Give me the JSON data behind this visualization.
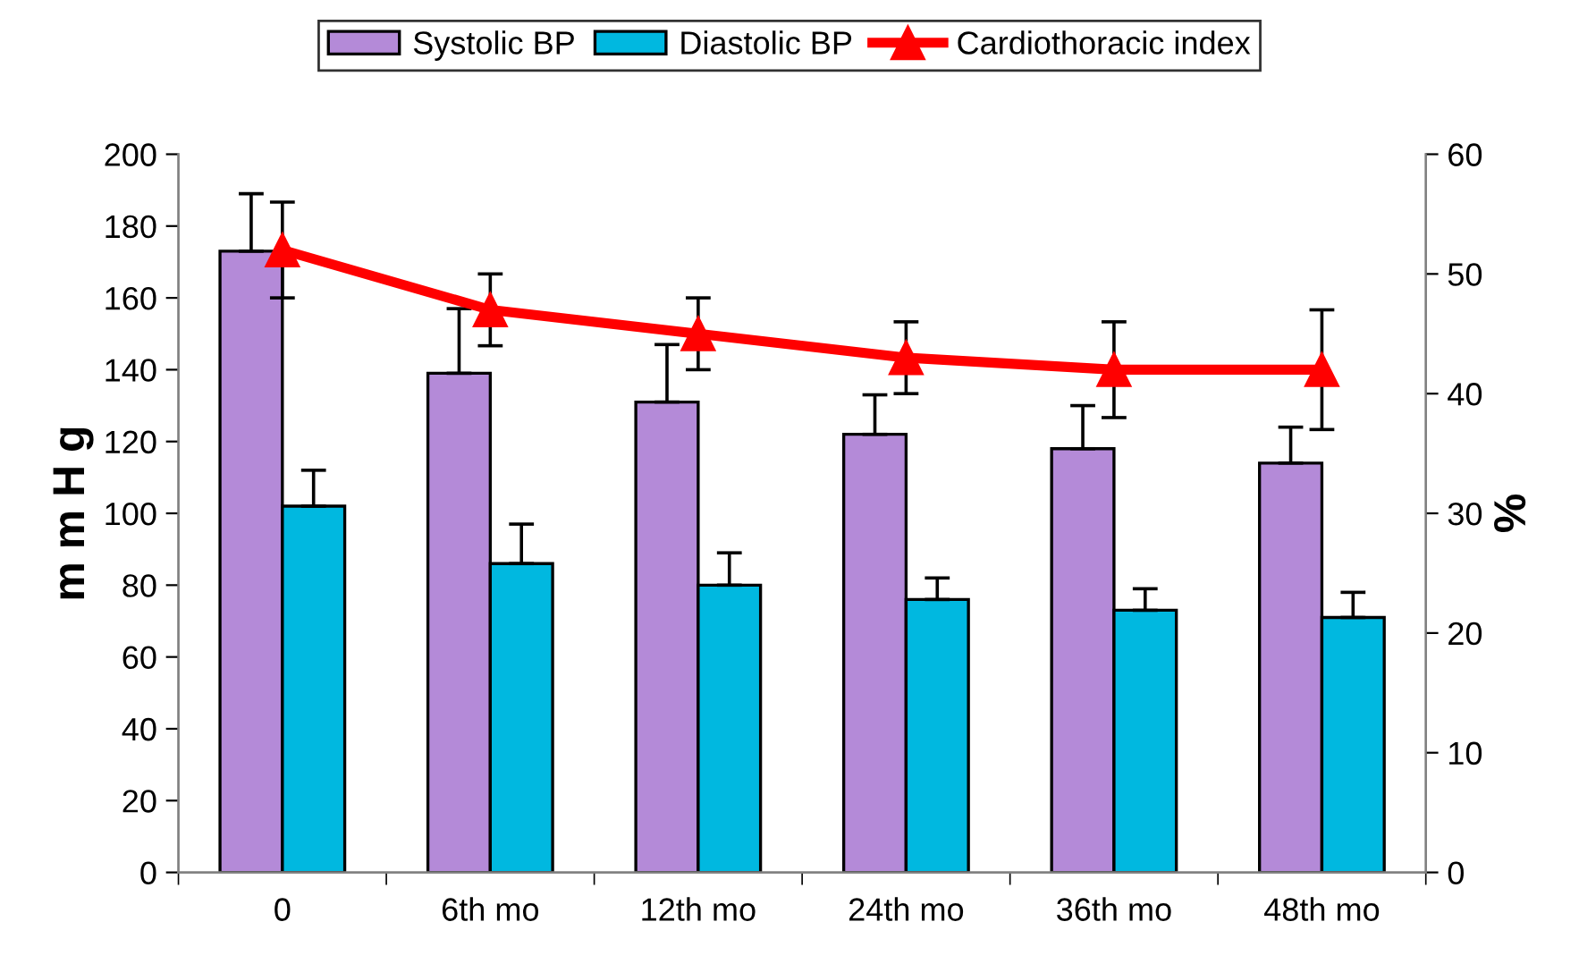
{
  "chart_data": {
    "type": "bar",
    "ylabel": "m m H g",
    "y2label": "%",
    "categories": [
      "0",
      "6th mo",
      "12th mo",
      "24th mo",
      "36th mo",
      "48th mo"
    ],
    "series": [
      {
        "name": "Systolic BP",
        "color": "#b48ad8",
        "values": [
          173,
          139,
          131,
          122,
          118,
          114
        ],
        "errors": [
          16,
          18,
          16,
          11,
          12,
          10
        ]
      },
      {
        "name": "Diastolic BP",
        "color": "#00b8e0",
        "values": [
          102,
          86,
          80,
          76,
          73,
          71
        ],
        "errors": [
          10,
          11,
          9,
          6,
          6,
          7
        ]
      },
      {
        "name": "Cardiothoracic index",
        "type": "line",
        "axis": "y2",
        "color": "#ff0000",
        "marker": "triangle",
        "values": [
          52,
          47,
          45,
          43,
          42,
          42
        ],
        "errors": [
          4,
          3,
          3,
          3,
          4,
          5
        ]
      }
    ],
    "ylim": [
      0,
      200
    ],
    "yticks": [
      0,
      20,
      40,
      60,
      80,
      100,
      120,
      140,
      160,
      180,
      200
    ],
    "y2lim": [
      0,
      60
    ],
    "y2ticks": [
      0,
      10,
      20,
      30,
      40,
      50,
      60
    ],
    "grid": false,
    "legend": "top"
  }
}
